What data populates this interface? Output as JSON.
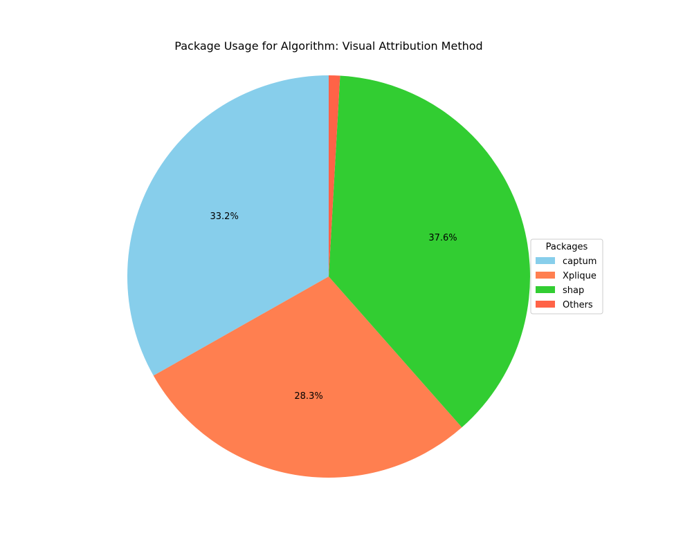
{
  "chart_data": {
    "type": "pie",
    "title": "Package Usage for Algorithm: Visual Attribution Method",
    "legend": {
      "title": "Packages",
      "placement": "center-right"
    },
    "slices": [
      {
        "label": "captum",
        "value": 33.2,
        "pct_label": "33.2%",
        "color": "#87CEEB"
      },
      {
        "label": "Xplique",
        "value": 28.3,
        "pct_label": "28.3%",
        "color": "#FF7F50"
      },
      {
        "label": "shap",
        "value": 37.6,
        "pct_label": "37.6%",
        "color": "#32CD32"
      },
      {
        "label": "Others",
        "value": 0.9,
        "pct_label": "",
        "color": "#FF6347"
      }
    ],
    "start_angle_deg": 90,
    "direction": "counterclockwise"
  }
}
